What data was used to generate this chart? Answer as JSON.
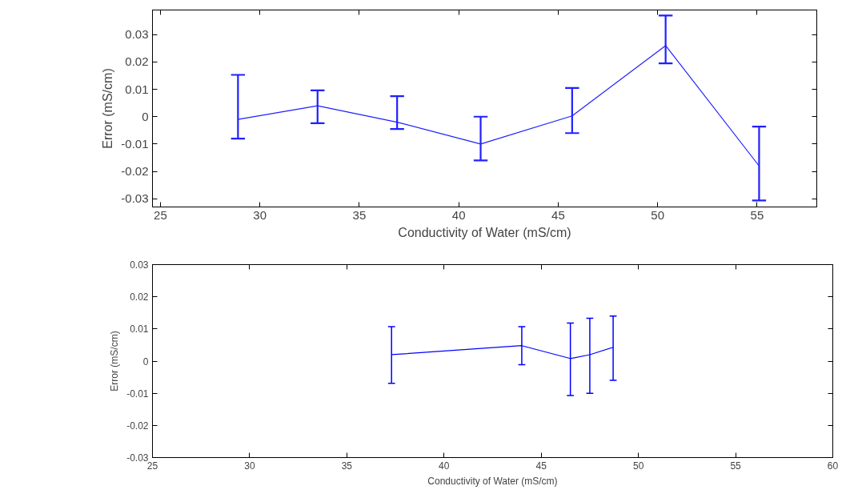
{
  "chart_data": [
    {
      "type": "line",
      "xlabel": "Conductivity of Water (mS/cm)",
      "ylabel": "Error (mS/cm)",
      "x": [
        28.9,
        32.9,
        36.9,
        41.1,
        45.7,
        50.4,
        55.1
      ],
      "series": [
        {
          "color": "#2020ff",
          "values": [
            -0.001,
            0.004,
            -0.002,
            -0.01,
            0.0003,
            0.026,
            -0.018
          ],
          "errors": [
            [
              -0.008,
              0.0153
            ],
            [
              -0.0024,
              0.0096
            ],
            [
              -0.0045,
              0.0075
            ],
            [
              -0.016,
              0.0
            ],
            [
              -0.006,
              0.0105
            ],
            [
              0.0195,
              0.037
            ],
            [
              -0.0306,
              -0.0036
            ]
          ]
        }
      ],
      "xlim": [
        24.6,
        58.0
      ],
      "ylim": [
        -0.033,
        0.039
      ],
      "xticks": [
        25,
        30,
        35,
        40,
        45,
        50,
        55
      ],
      "yticks": [
        -0.03,
        -0.02,
        -0.01,
        0,
        0.01,
        0.02,
        0.03
      ],
      "grid": false,
      "marker": "none",
      "line_style": "solid"
    },
    {
      "type": "line",
      "xlabel": "Conductivity of Water (mS/cm)",
      "ylabel": "Error (mS/cm)",
      "x": [
        37.3,
        44.0,
        46.5,
        47.5,
        48.7
      ],
      "series": [
        {
          "color": "#0000ff",
          "values": [
            0.002,
            0.0048,
            0.0008,
            0.002,
            0.0043
          ],
          "errors": [
            [
              -0.0069,
              0.0107
            ],
            [
              -0.0011,
              0.0107
            ],
            [
              -0.0107,
              0.0118
            ],
            [
              -0.01,
              0.0133
            ],
            [
              -0.006,
              0.014
            ]
          ]
        }
      ],
      "xlim": [
        25,
        60
      ],
      "ylim": [
        -0.03,
        0.03
      ],
      "xticks": [
        25,
        30,
        35,
        40,
        45,
        50,
        55,
        60
      ],
      "yticks": [
        -0.03,
        -0.02,
        -0.01,
        0,
        0.01,
        0.02,
        0.03
      ],
      "grid": false,
      "marker": "none",
      "line_style": "solid"
    }
  ]
}
